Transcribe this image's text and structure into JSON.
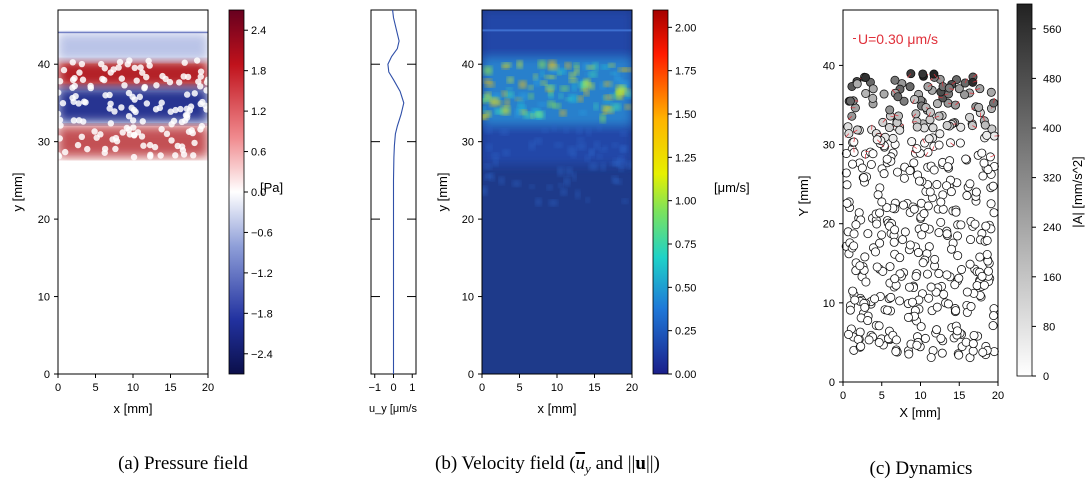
{
  "captions": {
    "a": "(a) Pressure field",
    "b": "(b) Velocity field (",
    "b_uy": "u",
    "b_uy_sub": "y",
    "b_and": " and ||",
    "b_u": "u",
    "b_close": "||)",
    "c": "(c) Dynamics"
  },
  "colors": {
    "pressure_neg": "#1f2a8c",
    "pressure_pos": "#b0141c",
    "velocity_bg": "#1e3a8a",
    "profile_line": "#2f4fa8",
    "annotation": "#e0303a"
  },
  "chart_data": [
    {
      "id": "pressure",
      "type": "heatmap",
      "xlabel": "x [mm]",
      "ylabel": "y [mm]",
      "xlim": [
        0,
        20
      ],
      "ylim": [
        0,
        47
      ],
      "xticks": [
        "0",
        "5",
        "10",
        "15",
        "20"
      ],
      "yticks": [
        "0",
        "10",
        "20",
        "30",
        "40"
      ],
      "colorbar": {
        "label": "[Pa]",
        "range": [
          -2.7,
          2.7
        ],
        "ticks": [
          "2.4",
          "1.8",
          "1.2",
          "0.6",
          "0.0",
          "−0.6",
          "−1.2",
          "−1.8",
          "−2.4"
        ],
        "colormap": "blue-white-red"
      },
      "bands": [
        {
          "y_range": [
            37,
            40.5
          ],
          "sign": "positive"
        },
        {
          "y_range": [
            32.5,
            37
          ],
          "sign": "negative"
        },
        {
          "y_range": [
            28,
            32
          ],
          "sign": "positive"
        },
        {
          "y_range": [
            40.5,
            44
          ],
          "sign": "negative-weak"
        }
      ]
    },
    {
      "id": "profile",
      "type": "line",
      "xlabel": "u_y [μm/s",
      "xlim": [
        -1.2,
        1.2
      ],
      "ylim": [
        0,
        47
      ],
      "xticks": [
        "−1",
        "0",
        "1"
      ],
      "y_tick_values": [
        0,
        10,
        20,
        30,
        40
      ],
      "series": [
        {
          "x": [
            0.0,
            0.0,
            0.0,
            0.0,
            0.0,
            0.0,
            0.02,
            0.05,
            0.1,
            0.2,
            0.4,
            0.55,
            0.35,
            0.0,
            -0.25,
            -0.3,
            -0.1,
            0.2,
            0.3,
            0.15,
            0.0,
            -0.05
          ],
          "y": [
            0,
            5,
            10,
            15,
            20,
            25,
            28,
            29.5,
            31,
            32,
            33.5,
            35,
            36.5,
            38,
            39,
            40,
            41,
            42,
            43,
            44.5,
            46,
            47
          ]
        }
      ]
    },
    {
      "id": "velocity",
      "type": "heatmap",
      "xlabel": "x [mm]",
      "ylabel": "y [mm]",
      "xlim": [
        0,
        20
      ],
      "ylim": [
        0,
        47
      ],
      "xticks": [
        "0",
        "5",
        "10",
        "15",
        "20"
      ],
      "yticks": [
        "0",
        "10",
        "20",
        "30",
        "40"
      ],
      "colorbar": {
        "label": "[μm/s]",
        "range": [
          0,
          2.1
        ],
        "ticks": [
          "2.00",
          "1.75",
          "1.50",
          "1.25",
          "1.00",
          "0.75",
          "0.50",
          "0.25",
          "0.00"
        ],
        "colormap": "jet"
      },
      "hot_band_y": [
        33,
        40
      ]
    },
    {
      "id": "dynamics",
      "type": "scatter",
      "xlabel": "X [mm]",
      "ylabel": "Y [mm]",
      "xlim": [
        0,
        20
      ],
      "ylim": [
        0,
        47
      ],
      "xticks": [
        "0",
        "5",
        "10",
        "15",
        "20"
      ],
      "yticks": [
        "0",
        "10",
        "20",
        "30",
        "40"
      ],
      "annotation": "U=0.30 μm/s",
      "colorbar": {
        "label": "|A| [mm/s^2]",
        "range": [
          0,
          600
        ],
        "ticks": [
          "560",
          "480",
          "400",
          "320",
          "240",
          "160",
          "80",
          "0"
        ],
        "colormap": "white-black"
      },
      "particle_region": {
        "x": [
          0,
          20
        ],
        "y": [
          3,
          39
        ]
      },
      "active_y": [
        30,
        39
      ]
    }
  ]
}
